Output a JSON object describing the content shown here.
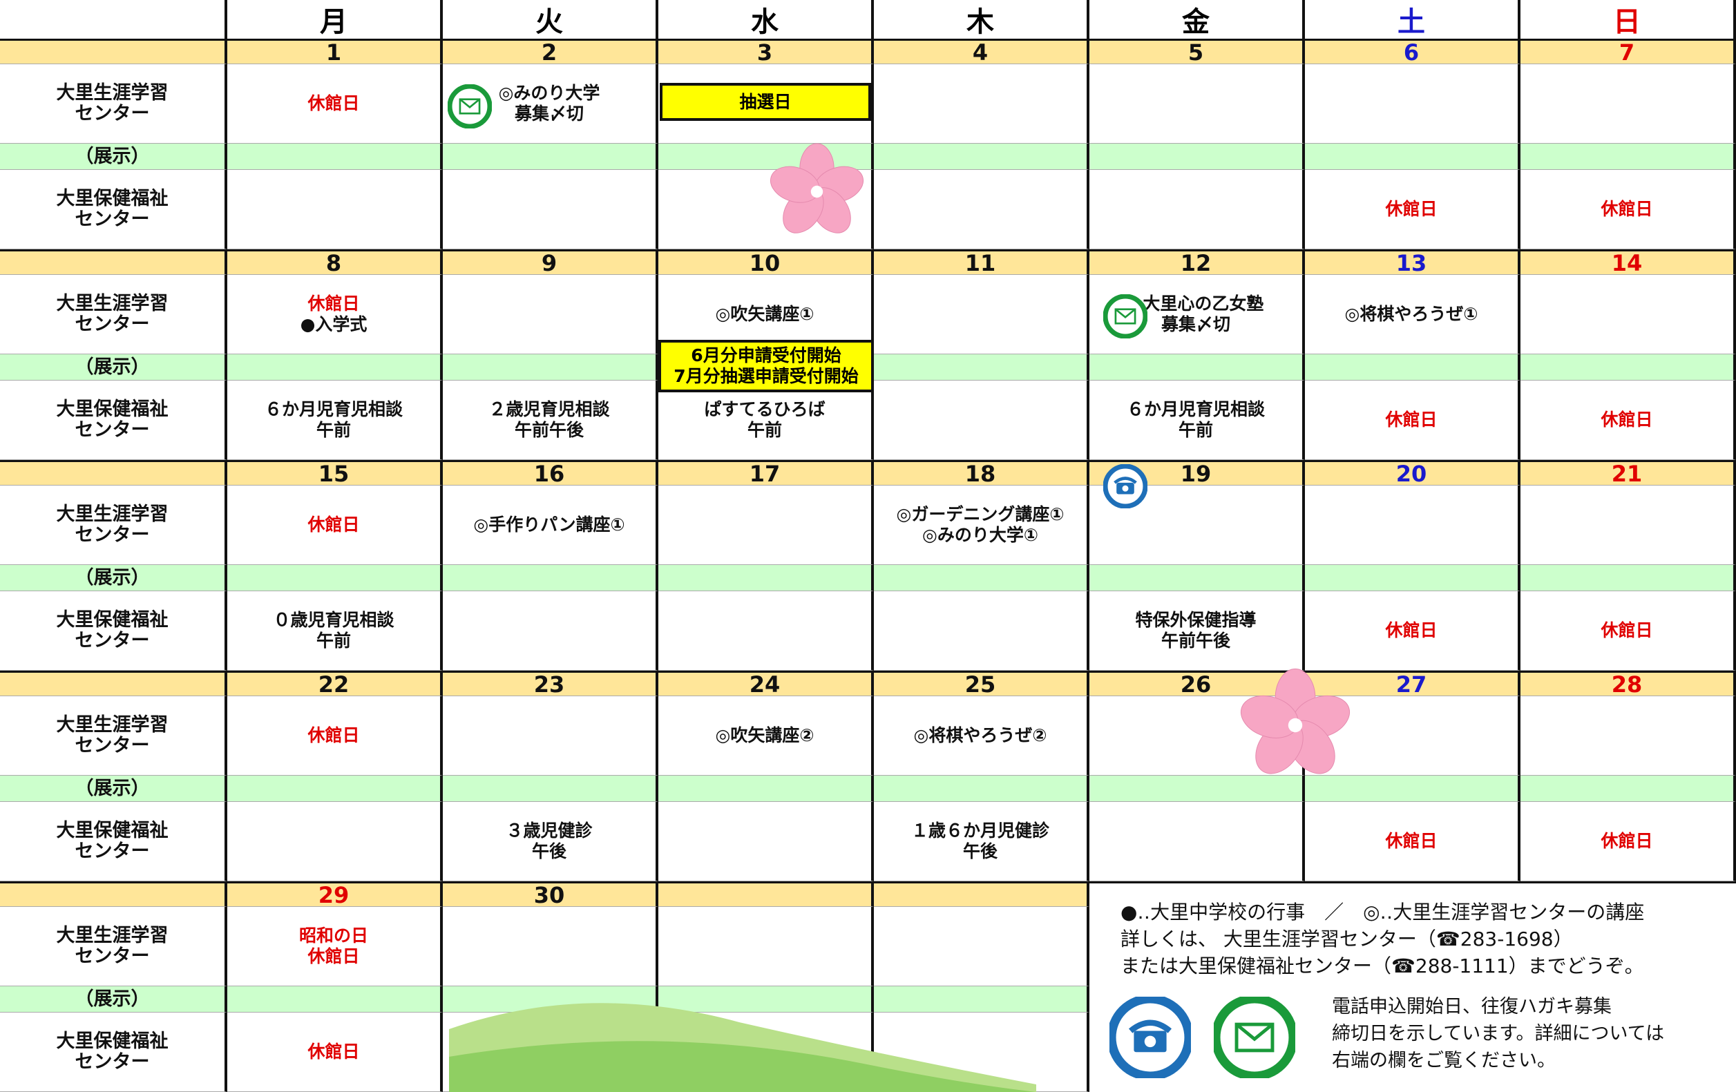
{
  "weekdays": [
    "月",
    "火",
    "水",
    "木",
    "金",
    "土",
    "日"
  ],
  "row_labels": [
    [
      "大里生涯学習",
      "センター"
    ],
    [
      "（展示）"
    ],
    [
      "大里保健福祉",
      "センター"
    ]
  ],
  "weeks": [
    {
      "dates": [
        1,
        2,
        3,
        4,
        5,
        6,
        7
      ],
      "center": [
        [
          "休館日"
        ],
        [
          "◎みのり大学",
          "募集〆切"
        ],
        [
          "抽選日"
        ],
        null,
        null,
        null,
        null
      ],
      "exhibit": [
        null,
        null,
        null,
        null,
        null,
        null,
        null
      ],
      "health": [
        null,
        null,
        null,
        null,
        null,
        [
          "休館日"
        ],
        [
          "休館日"
        ]
      ]
    },
    {
      "dates": [
        8,
        9,
        10,
        11,
        12,
        13,
        14
      ],
      "center": [
        [
          "休館日",
          "●入学式"
        ],
        null,
        [
          "◎吹矢講座①"
        ],
        null,
        [
          "◎大里心の乙女塾",
          "募集〆切"
        ],
        [
          "◎将棋やろうぜ①"
        ],
        null
      ],
      "exhibit": [
        null,
        null,
        [
          "6月分申請受付開始",
          "7月分抽選申請受付開始"
        ],
        null,
        null,
        null,
        null
      ],
      "health": [
        [
          "６か月児育児相談",
          "午前"
        ],
        [
          "２歳児育児相談",
          "午前午後"
        ],
        [
          "ぱすてるひろば",
          "午前"
        ],
        null,
        [
          "６か月児育児相談",
          "午前"
        ],
        [
          "休館日"
        ],
        [
          "休館日"
        ]
      ]
    },
    {
      "dates": [
        15,
        16,
        17,
        18,
        19,
        20,
        21
      ],
      "center": [
        [
          "休館日"
        ],
        [
          "◎手作りパン講座①"
        ],
        null,
        [
          "◎ガーデニング講座①",
          "◎みのり大学①"
        ],
        null,
        null,
        null
      ],
      "exhibit": [
        null,
        null,
        null,
        null,
        null,
        null,
        null
      ],
      "health": [
        [
          "０歳児育児相談",
          "午前"
        ],
        null,
        null,
        null,
        [
          "特保外保健指導",
          "午前午後"
        ],
        [
          "休館日"
        ],
        [
          "休館日"
        ]
      ]
    },
    {
      "dates": [
        22,
        23,
        24,
        25,
        26,
        27,
        28
      ],
      "center": [
        [
          "休館日"
        ],
        null,
        [
          "◎吹矢講座②"
        ],
        [
          "◎将棋やろうぜ②"
        ],
        null,
        null,
        null
      ],
      "exhibit": [
        null,
        null,
        null,
        null,
        null,
        null,
        null
      ],
      "health": [
        null,
        [
          "３歳児健診",
          "午後"
        ],
        null,
        [
          "１歳６か月児健診",
          "午後"
        ],
        null,
        [
          "休館日"
        ],
        [
          "休館日"
        ]
      ]
    },
    {
      "dates": [
        29,
        30,
        null,
        null,
        null,
        null,
        null
      ],
      "center": [
        [
          "昭和の日",
          "休館日"
        ],
        null,
        null,
        null,
        null,
        null,
        null
      ],
      "exhibit": [
        null,
        null,
        null,
        null,
        null,
        null,
        null
      ],
      "health": [
        [
          "休館日"
        ],
        null,
        null,
        null,
        null,
        null,
        null
      ]
    }
  ],
  "legend": {
    "lines": [
      "●‥大里中学校の行事　／　◎‥大里生涯学習センターの講座",
      "詳しくは、 大里生涯学習センター（☎283-1698）",
      "または大里保健福祉センター（☎288-1111）までどうぞ。"
    ],
    "icon_note": [
      "電話申込開始日、往復ハガキ募集",
      "締切日を示しています。詳細については",
      "右端の欄をご覧ください。"
    ]
  }
}
